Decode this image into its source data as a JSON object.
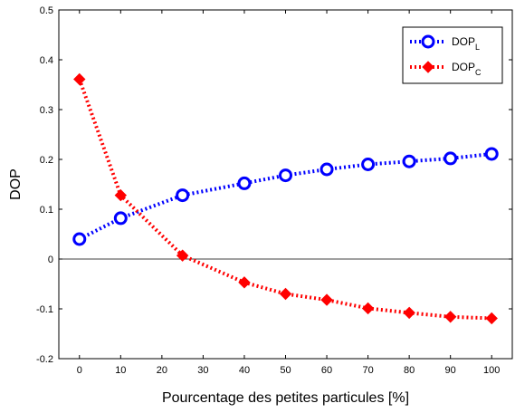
{
  "chart_data": {
    "type": "line",
    "title": "",
    "xlabel": "Pourcentage des petites particules [%]",
    "ylabel": "DOP",
    "x": [
      0,
      10,
      25,
      40,
      50,
      60,
      70,
      80,
      90,
      100
    ],
    "xticks": [
      "0",
      "10",
      "20",
      "30",
      "40",
      "50",
      "60",
      "70",
      "80",
      "90",
      "100"
    ],
    "yticks": [
      "-0.2",
      "-0.1",
      "0",
      "0.1",
      "0.2",
      "0.3",
      "0.4",
      "0.5"
    ],
    "ylim": [
      -0.2,
      0.5
    ],
    "grid": false,
    "zero_line": true,
    "legend_position": "top-right",
    "series": [
      {
        "name": "DOP",
        "subscript": "L",
        "color": "#0000ff",
        "marker": "circle",
        "line_style": "dotted",
        "values": [
          0.04,
          0.082,
          0.128,
          0.152,
          0.168,
          0.18,
          0.19,
          0.196,
          0.202,
          0.211
        ]
      },
      {
        "name": "DOP",
        "subscript": "C",
        "color": "#ff0000",
        "marker": "diamond",
        "line_style": "dotted",
        "values": [
          0.361,
          0.128,
          0.007,
          -0.047,
          -0.07,
          -0.082,
          -0.099,
          -0.108,
          -0.116,
          -0.119
        ]
      }
    ]
  }
}
